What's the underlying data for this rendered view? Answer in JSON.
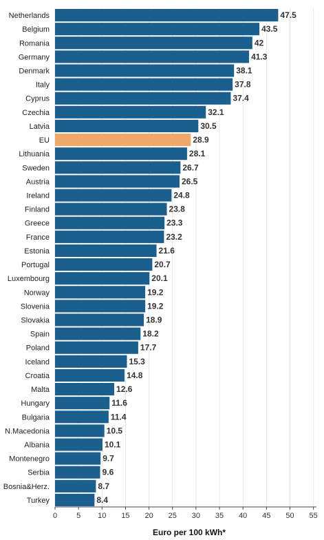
{
  "chart_data": {
    "type": "bar",
    "orientation": "horizontal",
    "xlabel": "Euro per 100 kWh*",
    "xlim": [
      0,
      55
    ],
    "xticks": [
      0,
      5,
      10,
      15,
      20,
      25,
      30,
      35,
      40,
      45,
      50,
      55
    ],
    "grid": true,
    "colors": {
      "default": "#1a5f8e",
      "highlight": "#f0a868"
    },
    "highlight_category": "EU",
    "categories": [
      "Netherlands",
      "Belgium",
      "Romania",
      "Germany",
      "Denmark",
      "Italy",
      "Cyprus",
      "Czechia",
      "Latvia",
      "EU",
      "Lithuania",
      "Sweden",
      "Austria",
      "Ireland",
      "Finland",
      "Greece",
      "France",
      "Estonia",
      "Portugal",
      "Luxembourg",
      "Norway",
      "Slovenia",
      "Slovakia",
      "Spain",
      "Poland",
      "Iceland",
      "Croatia",
      "Malta",
      "Hungary",
      "Bulgaria",
      "N.Macedonia",
      "Albania",
      "Montenegro",
      "Serbia",
      "Bosnia&Herz.",
      "Turkey"
    ],
    "values": [
      47.5,
      43.5,
      42,
      41.3,
      38.1,
      37.8,
      37.4,
      32.1,
      30.5,
      28.9,
      28.1,
      26.7,
      26.5,
      24.8,
      23.8,
      23.3,
      23.2,
      21.6,
      20.7,
      20.1,
      19.2,
      19.2,
      18.9,
      18.2,
      17.7,
      15.3,
      14.8,
      12.6,
      11.6,
      11.4,
      10.5,
      10.1,
      9.7,
      9.6,
      8.7,
      8.4
    ]
  }
}
